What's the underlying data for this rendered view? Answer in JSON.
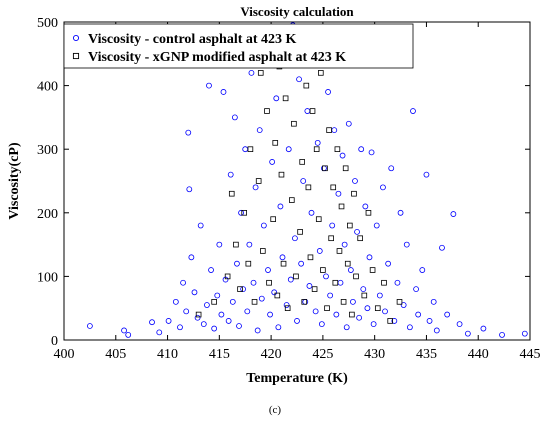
{
  "caption": "(c)",
  "chart_data": {
    "type": "scatter",
    "title": "Viscosity calculation",
    "xlabel": "Temperature (K)",
    "ylabel": "Viscosity(cP)",
    "xlim": [
      400,
      445
    ],
    "ylim": [
      0,
      500
    ],
    "xticks": [
      400,
      405,
      410,
      415,
      420,
      425,
      430,
      435,
      440,
      445
    ],
    "yticks": [
      0,
      100,
      200,
      300,
      400,
      500
    ],
    "grid": false,
    "legend_position": "top-left",
    "series": [
      {
        "name": "Viscosity - control asphalt at 423 K",
        "marker": "circle",
        "color": "#0000ff",
        "points": [
          [
            402.5,
            22
          ],
          [
            405.8,
            15
          ],
          [
            406.2,
            8
          ],
          [
            408.5,
            28
          ],
          [
            409.2,
            12
          ],
          [
            410.1,
            30
          ],
          [
            410.8,
            60
          ],
          [
            411.2,
            20
          ],
          [
            411.5,
            90
          ],
          [
            411.8,
            45
          ],
          [
            412.0,
            326
          ],
          [
            412.1,
            237
          ],
          [
            412.3,
            130
          ],
          [
            412.6,
            75
          ],
          [
            412.9,
            35
          ],
          [
            413.2,
            180
          ],
          [
            413.5,
            25
          ],
          [
            413.8,
            55
          ],
          [
            414.0,
            400
          ],
          [
            414.2,
            110
          ],
          [
            414.5,
            18
          ],
          [
            414.8,
            70
          ],
          [
            415.0,
            150
          ],
          [
            415.2,
            40
          ],
          [
            415.4,
            390
          ],
          [
            415.6,
            95
          ],
          [
            415.9,
            30
          ],
          [
            416.1,
            260
          ],
          [
            416.3,
            60
          ],
          [
            416.5,
            350
          ],
          [
            416.7,
            120
          ],
          [
            416.9,
            22
          ],
          [
            417.1,
            200
          ],
          [
            417.3,
            80
          ],
          [
            417.5,
            300
          ],
          [
            417.7,
            45
          ],
          [
            417.9,
            150
          ],
          [
            418.1,
            420
          ],
          [
            418.3,
            90
          ],
          [
            418.5,
            240
          ],
          [
            418.7,
            15
          ],
          [
            418.9,
            330
          ],
          [
            419.1,
            65
          ],
          [
            419.3,
            180
          ],
          [
            419.5,
            460
          ],
          [
            419.7,
            110
          ],
          [
            419.9,
            40
          ],
          [
            420.1,
            280
          ],
          [
            420.3,
            75
          ],
          [
            420.5,
            380
          ],
          [
            420.7,
            20
          ],
          [
            420.9,
            210
          ],
          [
            421.1,
            130
          ],
          [
            421.3,
            470
          ],
          [
            421.5,
            55
          ],
          [
            421.7,
            300
          ],
          [
            421.9,
            95
          ],
          [
            422.1,
            495
          ],
          [
            422.3,
            160
          ],
          [
            422.5,
            30
          ],
          [
            422.7,
            410
          ],
          [
            422.9,
            120
          ],
          [
            423.1,
            250
          ],
          [
            423.3,
            60
          ],
          [
            423.5,
            360
          ],
          [
            423.7,
            85
          ],
          [
            423.9,
            200
          ],
          [
            424.1,
            440
          ],
          [
            424.3,
            45
          ],
          [
            424.5,
            310
          ],
          [
            424.7,
            140
          ],
          [
            424.9,
            25
          ],
          [
            425.1,
            270
          ],
          [
            425.3,
            100
          ],
          [
            425.5,
            390
          ],
          [
            425.7,
            70
          ],
          [
            425.9,
            180
          ],
          [
            426.1,
            330
          ],
          [
            426.3,
            40
          ],
          [
            426.5,
            230
          ],
          [
            426.7,
            90
          ],
          [
            426.9,
            290
          ],
          [
            427.1,
            150
          ],
          [
            427.3,
            20
          ],
          [
            427.5,
            340
          ],
          [
            427.7,
            110
          ],
          [
            427.9,
            60
          ],
          [
            428.1,
            250
          ],
          [
            428.3,
            170
          ],
          [
            428.5,
            35
          ],
          [
            428.7,
            300
          ],
          [
            428.9,
            80
          ],
          [
            429.1,
            210
          ],
          [
            429.3,
            50
          ],
          [
            429.5,
            130
          ],
          [
            429.7,
            295
          ],
          [
            429.9,
            25
          ],
          [
            430.2,
            180
          ],
          [
            430.5,
            70
          ],
          [
            430.8,
            240
          ],
          [
            431.0,
            45
          ],
          [
            431.3,
            120
          ],
          [
            431.6,
            270
          ],
          [
            431.9,
            30
          ],
          [
            432.2,
            90
          ],
          [
            432.5,
            200
          ],
          [
            432.8,
            55
          ],
          [
            433.1,
            150
          ],
          [
            433.4,
            20
          ],
          [
            433.7,
            360
          ],
          [
            434.0,
            80
          ],
          [
            434.2,
            40
          ],
          [
            434.6,
            110
          ],
          [
            435.0,
            260
          ],
          [
            435.3,
            30
          ],
          [
            435.7,
            60
          ],
          [
            436.0,
            15
          ],
          [
            436.5,
            145
          ],
          [
            437.0,
            40
          ],
          [
            437.6,
            198
          ],
          [
            438.2,
            25
          ],
          [
            439.0,
            10
          ],
          [
            440.5,
            18
          ],
          [
            442.3,
            8
          ],
          [
            444.5,
            10
          ]
        ]
      },
      {
        "name": "Viscosity - xGNP modified asphalt at 423 K",
        "marker": "square",
        "color": "#000000",
        "points": [
          [
            413.0,
            40
          ],
          [
            414.5,
            60
          ],
          [
            415.8,
            100
          ],
          [
            416.2,
            230
          ],
          [
            416.6,
            150
          ],
          [
            417.0,
            80
          ],
          [
            417.4,
            200
          ],
          [
            417.8,
            120
          ],
          [
            418.0,
            300
          ],
          [
            418.4,
            60
          ],
          [
            418.8,
            250
          ],
          [
            419.0,
            420
          ],
          [
            419.2,
            140
          ],
          [
            419.6,
            360
          ],
          [
            419.8,
            90
          ],
          [
            420.0,
            470
          ],
          [
            420.2,
            190
          ],
          [
            420.4,
            310
          ],
          [
            420.6,
            70
          ],
          [
            420.8,
            430
          ],
          [
            421.0,
            260
          ],
          [
            421.2,
            120
          ],
          [
            421.4,
            380
          ],
          [
            421.6,
            50
          ],
          [
            421.8,
            490
          ],
          [
            422.0,
            220
          ],
          [
            422.2,
            340
          ],
          [
            422.4,
            100
          ],
          [
            422.6,
            450
          ],
          [
            422.8,
            170
          ],
          [
            423.0,
            280
          ],
          [
            423.2,
            60
          ],
          [
            423.4,
            400
          ],
          [
            423.6,
            240
          ],
          [
            423.8,
            130
          ],
          [
            424.0,
            360
          ],
          [
            424.2,
            80
          ],
          [
            424.4,
            300
          ],
          [
            424.6,
            190
          ],
          [
            424.8,
            420
          ],
          [
            425.0,
            110
          ],
          [
            425.2,
            270
          ],
          [
            425.4,
            50
          ],
          [
            425.6,
            330
          ],
          [
            425.8,
            160
          ],
          [
            426.0,
            240
          ],
          [
            426.2,
            90
          ],
          [
            426.4,
            300
          ],
          [
            426.6,
            140
          ],
          [
            426.8,
            210
          ],
          [
            427.0,
            60
          ],
          [
            427.2,
            270
          ],
          [
            427.4,
            120
          ],
          [
            427.6,
            180
          ],
          [
            427.8,
            40
          ],
          [
            428.0,
            230
          ],
          [
            428.2,
            100
          ],
          [
            428.6,
            160
          ],
          [
            429.0,
            70
          ],
          [
            429.4,
            200
          ],
          [
            429.8,
            110
          ],
          [
            430.3,
            50
          ],
          [
            430.9,
            90
          ],
          [
            431.5,
            30
          ],
          [
            432.4,
            60
          ]
        ]
      }
    ]
  }
}
